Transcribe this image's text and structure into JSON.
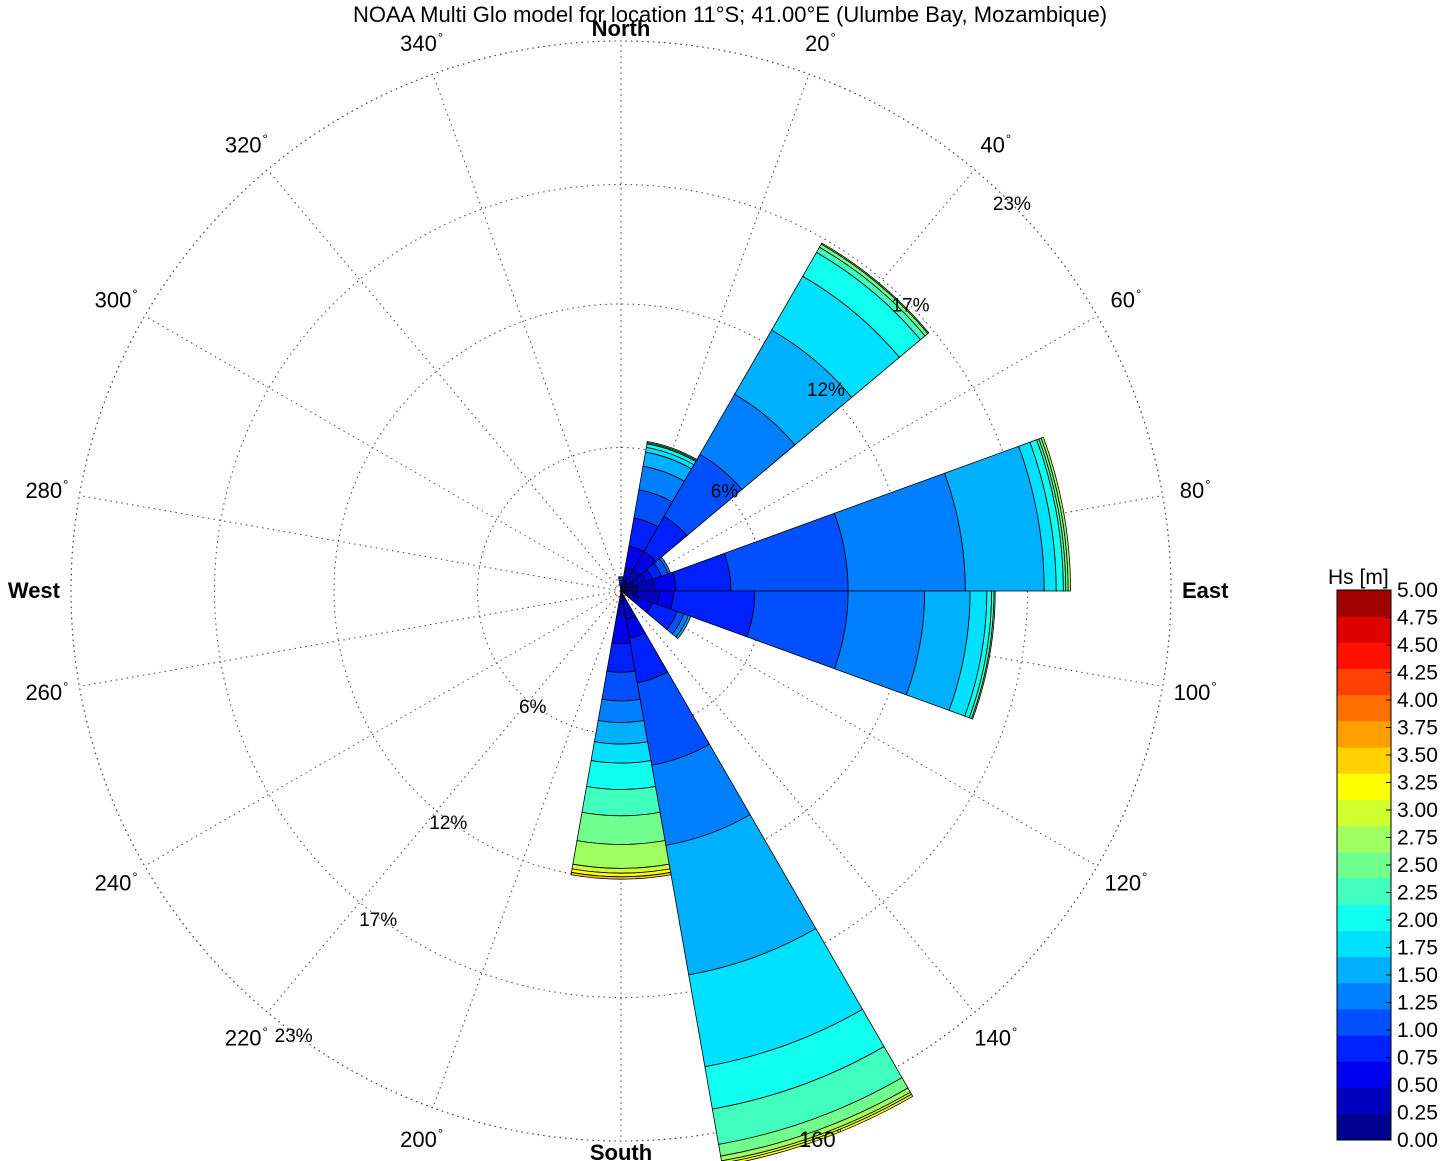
{
  "chart_data": {
    "type": "wave-rose",
    "title": "NOAA Multi Glo model for location 11°S; 41.00°E (Ulumbe Bay, Mozambique)",
    "cardinal_labels": {
      "north": "North",
      "east": "East",
      "south": "South",
      "west": "West"
    },
    "direction_ticks_deg": [
      20,
      40,
      60,
      80,
      100,
      120,
      140,
      160,
      200,
      220,
      240,
      260,
      280,
      300,
      320,
      340
    ],
    "direction_tick_suffix": "°",
    "radial_axis": {
      "unit": "percent of occurrence",
      "max": 23,
      "rings": [
        6,
        12,
        17,
        23
      ],
      "ring_labels": [
        "6%",
        "12%",
        "17%",
        "23%"
      ]
    },
    "sector_width_deg": 20,
    "colorbar": {
      "label": "Hs [m]",
      "bins_m": [
        0.0,
        0.25,
        0.5,
        0.75,
        1.0,
        1.25,
        1.5,
        1.75,
        2.0,
        2.25,
        2.5,
        2.75,
        3.0,
        3.25,
        3.5,
        3.75,
        4.0,
        4.25,
        4.5,
        4.75,
        5.0
      ],
      "tick_labels": [
        "0.00",
        "0.25",
        "0.50",
        "0.75",
        "1.00",
        "1.25",
        "1.50",
        "1.75",
        "2.00",
        "2.25",
        "2.50",
        "2.75",
        "3.00",
        "3.25",
        "3.50",
        "3.75",
        "4.00",
        "4.25",
        "4.50",
        "4.75",
        "5.00"
      ],
      "colors": [
        "#00008f",
        "#0000bf",
        "#0000ef",
        "#0020ff",
        "#0050ff",
        "#0080ff",
        "#00b0ff",
        "#00e0ff",
        "#10ffef",
        "#40ffbf",
        "#70ff8f",
        "#a0ff60",
        "#d0ff30",
        "#ffff00",
        "#ffd000",
        "#ffa000",
        "#ff7000",
        "#ff4000",
        "#ff1000",
        "#df0000",
        "#9f0000"
      ]
    },
    "sectors": [
      {
        "direction_deg": 0,
        "cumulative_pct": [
          0.1,
          0.2,
          0.3,
          0.45,
          0.55,
          0.6
        ]
      },
      {
        "direction_deg": 20,
        "cumulative_pct": [
          0.5,
          1.0,
          1.9,
          3.1,
          4.3,
          5.3,
          5.9,
          6.1,
          6.25,
          6.3,
          6.35
        ]
      },
      {
        "direction_deg": 40,
        "cumulative_pct": [
          0.4,
          1.0,
          1.9,
          3.6,
          6.6,
          9.5,
          12.6,
          15.2,
          16.35,
          16.6,
          16.75,
          16.8
        ]
      },
      {
        "direction_deg": 60,
        "cumulative_pct": [
          0.6,
          1.1,
          1.4,
          1.8,
          2.1,
          2.2
        ]
      },
      {
        "direction_deg": 80,
        "cumulative_pct": [
          0.7,
          1.4,
          2.3,
          4.6,
          9.5,
          14.4,
          17.7,
          18.2,
          18.5,
          18.6,
          18.7,
          18.8
        ]
      },
      {
        "direction_deg": 100,
        "cumulative_pct": [
          0.6,
          1.6,
          2.2,
          5.6,
          9.5,
          12.7,
          14.6,
          15.3,
          15.5,
          15.6,
          15.65
        ]
      },
      {
        "direction_deg": 120,
        "cumulative_pct": [
          0.4,
          0.8,
          1.4,
          2.5,
          2.8,
          3.0,
          3.1
        ]
      },
      {
        "direction_deg": 160,
        "cumulative_pct": [
          0.4,
          1.2,
          2.0,
          3.9,
          7.4,
          10.8,
          16.3,
          20.2,
          22.0,
          23.5,
          24.0,
          24.2,
          24.3,
          24.4
        ]
      },
      {
        "direction_deg": 180,
        "cumulative_pct": [
          0.4,
          1.0,
          2.2,
          3.4,
          4.6,
          5.5,
          6.4,
          7.2,
          8.3,
          9.4,
          10.6,
          11.6,
          11.8,
          11.95,
          12.05
        ]
      }
    ]
  }
}
